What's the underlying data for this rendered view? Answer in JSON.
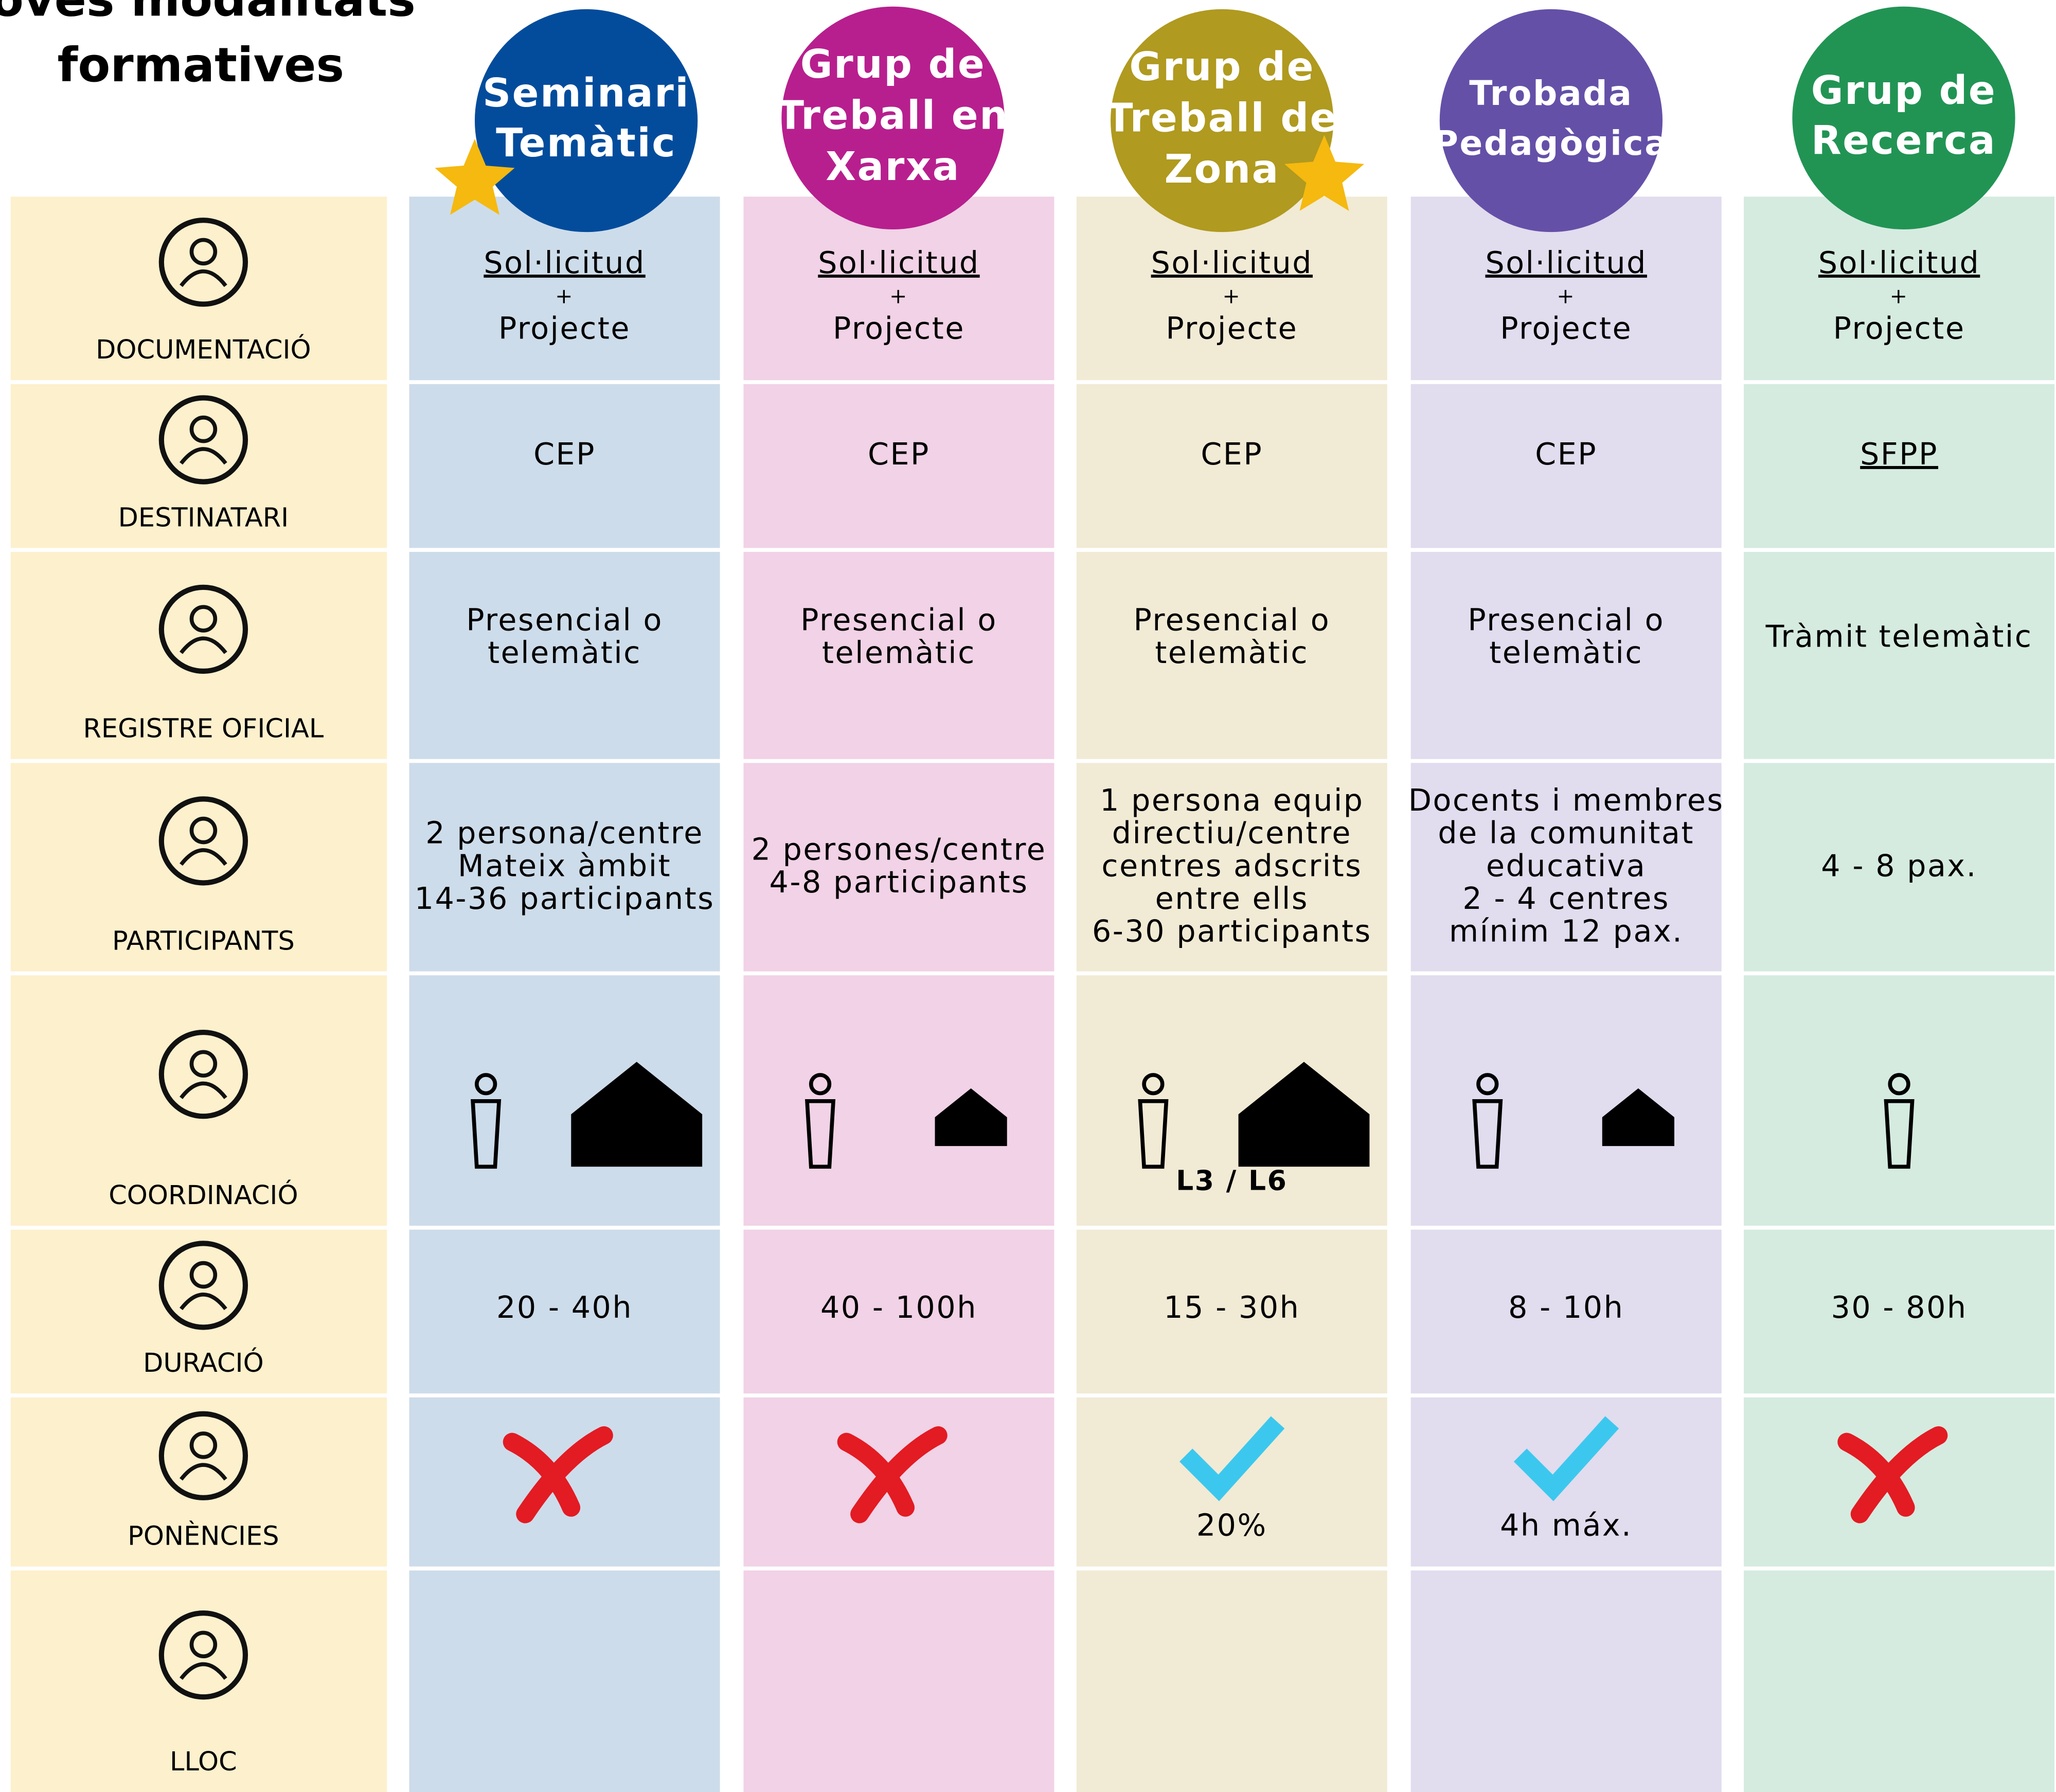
{
  "title": [
    "oves modalitats",
    "formatives"
  ],
  "columns": [
    [
      "Seminari",
      "Temàtic"
    ],
    [
      "Grup de",
      "Treball en",
      "Xarxa"
    ],
    [
      "Grup de",
      "Treball de",
      "Zona"
    ],
    [
      "Trobada",
      "Pedagògica"
    ],
    [
      "Grup de",
      "Recerca"
    ]
  ],
  "rows": [
    {
      "label": "DOCUMENTACIÓ",
      "cells": [
        [
          "Sol·licitud",
          "+",
          "Projecte"
        ],
        [
          "Sol·licitud",
          "+",
          "Projecte"
        ],
        [
          "Sol·licitud",
          "+",
          "Projecte"
        ],
        [
          "Sol·licitud",
          "+",
          "Projecte"
        ],
        [
          "Sol·licitud",
          "+",
          "Projecte"
        ]
      ]
    },
    {
      "label": "DESTINATARI",
      "cells": [
        [
          "CEP"
        ],
        [
          "CEP"
        ],
        [
          "CEP"
        ],
        [
          "CEP"
        ],
        [
          "SFPP"
        ]
      ]
    },
    {
      "label": "REGISTRE OFICIAL",
      "cells": [
        [
          "Presencial o",
          "telemàtic"
        ],
        [
          "Presencial o",
          "telemàtic"
        ],
        [
          "Presencial o",
          "telemàtic"
        ],
        [
          "Presencial o",
          "telemàtic"
        ],
        [
          "Tràmit telemàtic"
        ]
      ]
    },
    {
      "label": "PARTICIPANTS",
      "cells": [
        [
          "2 persona/centre",
          "Mateix àmbit",
          "14-36 participants"
        ],
        [
          "2 persones/centre",
          "4-8 participants"
        ],
        [
          "1 persona equip",
          "directiu/centre",
          "centres adscrits",
          "entre ells",
          "6-30 participants"
        ],
        [
          "Docents i membres",
          "de la comunitat",
          "educativa",
          "2 - 4 centres",
          "mínim 12 pax."
        ],
        [
          "4 - 8 pax."
        ]
      ]
    },
    {
      "label": "COORDINACIÓ",
      "cells": [
        [],
        [],
        [
          "L3 / L6"
        ],
        [],
        []
      ]
    },
    {
      "label": "DURACIÓ",
      "cells": [
        [
          "20 - 40h"
        ],
        [
          "40 - 100h"
        ],
        [
          "15 - 30h"
        ],
        [
          "8 - 10h"
        ],
        [
          "30 - 80h"
        ]
      ]
    },
    {
      "label": "PONÈNCIES",
      "cells": [
        [],
        [],
        [
          "20%"
        ],
        [
          "4h máx."
        ],
        []
      ]
    },
    {
      "label": "LLOC",
      "cells": [
        [],
        [],
        [],
        [],
        []
      ]
    }
  ]
}
